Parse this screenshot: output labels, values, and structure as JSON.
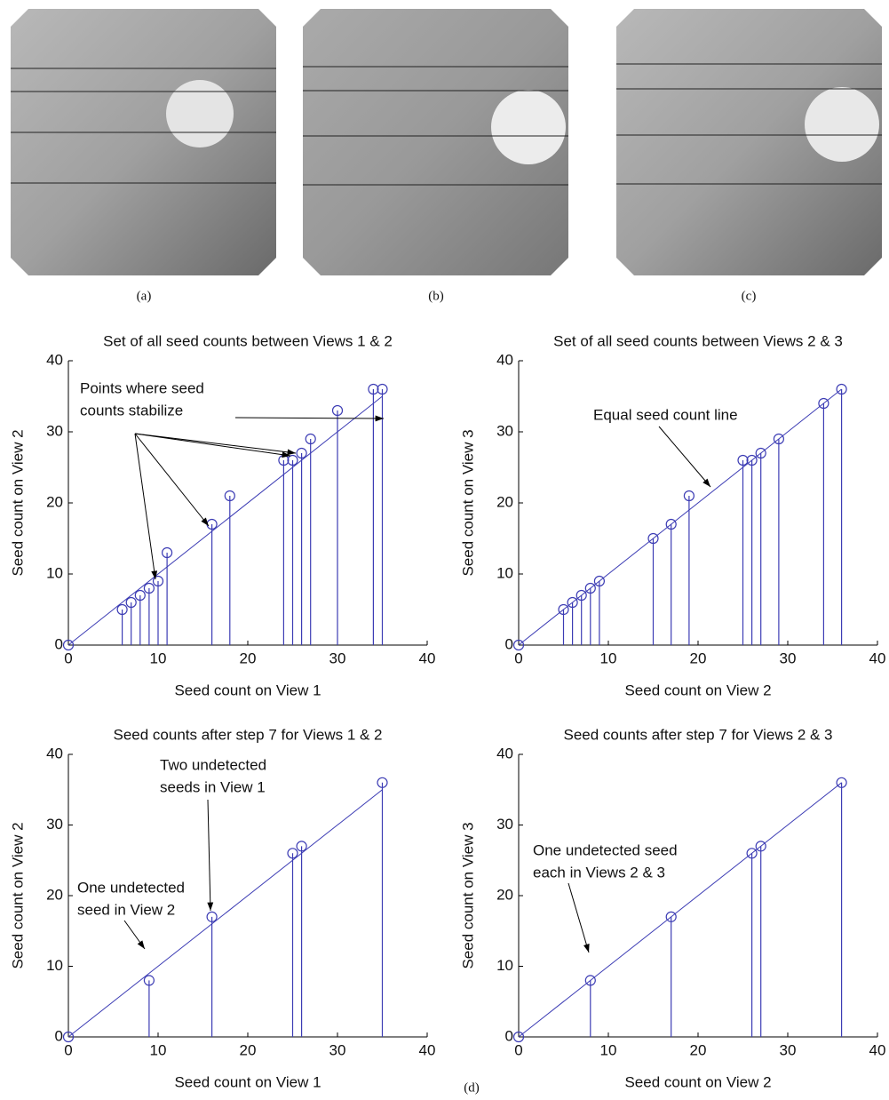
{
  "panel_labels": [
    "(a)",
    "(b)",
    "(c)",
    "(d)"
  ],
  "chart_data": [
    {
      "type": "stem",
      "title": "Set of all seed  counts between Views 1 & 2",
      "x_label": "Seed count on View 1",
      "y_label": "Seed count on View 2",
      "x": [
        0,
        6,
        7,
        8,
        9,
        10,
        11,
        16,
        18,
        24,
        25,
        26,
        27,
        30,
        34,
        35
      ],
      "values": [
        0,
        5,
        6,
        7,
        8,
        9,
        13,
        17,
        21,
        26,
        26,
        27,
        29,
        33,
        36,
        36
      ],
      "color": "#3c3cb4",
      "xlim": [
        0,
        40
      ],
      "ylim": [
        0,
        40
      ],
      "xticks": [
        0,
        10,
        20,
        30,
        40
      ],
      "yticks": [
        0,
        10,
        20,
        30,
        40
      ],
      "annotations": [
        {
          "lines": [
            "Points where seed",
            "counts stabilize"
          ]
        }
      ]
    },
    {
      "type": "stem",
      "title": "Set of all seed  counts between Views 2 & 3",
      "x_label": "Seed count on View 2",
      "y_label": "Seed count on View 3",
      "x": [
        0,
        5,
        6,
        7,
        8,
        9,
        15,
        17,
        19,
        25,
        26,
        27,
        29,
        34,
        36
      ],
      "values": [
        0,
        5,
        6,
        7,
        8,
        9,
        15,
        17,
        21,
        26,
        26,
        27,
        29,
        34,
        36
      ],
      "color": "#3c3cb4",
      "xlim": [
        0,
        40
      ],
      "ylim": [
        0,
        40
      ],
      "xticks": [
        0,
        10,
        20,
        30,
        40
      ],
      "yticks": [
        0,
        10,
        20,
        30,
        40
      ],
      "annotations": [
        {
          "lines": [
            "Equal seed count line"
          ]
        }
      ]
    },
    {
      "type": "stem",
      "title": "Seed  counts after step 7 for Views 1 & 2",
      "x_label": "Seed count on View 1",
      "y_label": "Seed count on View 2",
      "x": [
        0,
        9,
        16,
        25,
        26,
        35
      ],
      "values": [
        0,
        8,
        17,
        26,
        27,
        36
      ],
      "color": "#3c3cb4",
      "xlim": [
        0,
        40
      ],
      "ylim": [
        0,
        40
      ],
      "xticks": [
        0,
        10,
        20,
        30,
        40
      ],
      "yticks": [
        0,
        10,
        20,
        30,
        40
      ],
      "annotations": [
        {
          "lines": [
            "Two undetected",
            "seeds in View 1"
          ]
        },
        {
          "lines": [
            "One undetected",
            "seed in  View 2"
          ]
        }
      ]
    },
    {
      "type": "stem",
      "title": "Seed  counts after step 7 for Views 2 & 3",
      "x_label": "Seed count on View 2",
      "y_label": "Seed count on View 3",
      "x": [
        0,
        8,
        17,
        26,
        27,
        36
      ],
      "values": [
        0,
        8,
        17,
        26,
        27,
        36
      ],
      "color": "#3c3cb4",
      "xlim": [
        0,
        40
      ],
      "ylim": [
        0,
        40
      ],
      "xticks": [
        0,
        10,
        20,
        30,
        40
      ],
      "yticks": [
        0,
        10,
        20,
        30,
        40
      ],
      "annotations": [
        {
          "lines": [
            "One undetected seed",
            "each in Views 2 & 3"
          ]
        }
      ]
    }
  ]
}
